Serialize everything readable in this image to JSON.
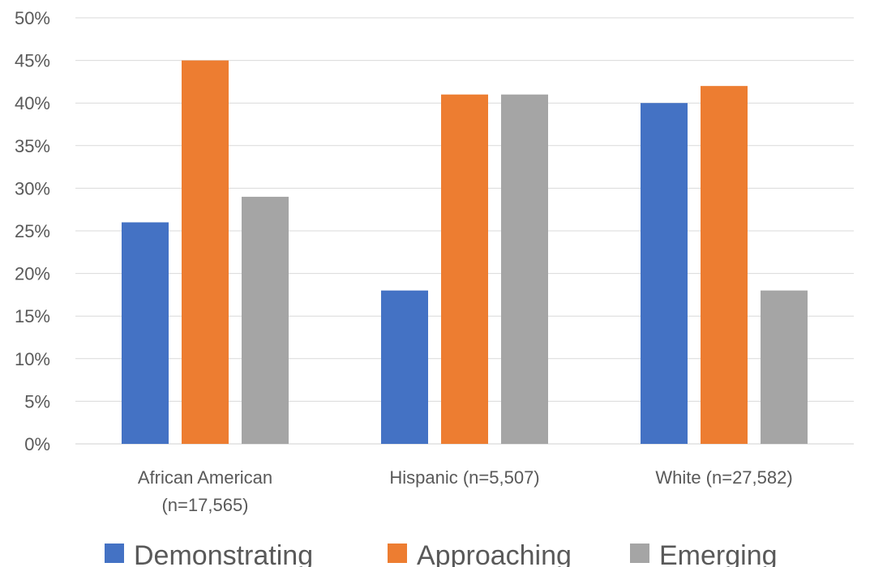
{
  "chart_data": {
    "type": "bar",
    "categories": [
      [
        "African American",
        "(n=17,565)"
      ],
      [
        "Hispanic (n=5,507)"
      ],
      [
        "White (n=27,582)"
      ]
    ],
    "series": [
      {
        "name": "Demonstrating",
        "values": [
          26,
          18,
          40
        ],
        "color": "#4472C4"
      },
      {
        "name": "Approaching",
        "values": [
          45,
          41,
          42
        ],
        "color": "#ED7D31"
      },
      {
        "name": "Emerging",
        "values": [
          29,
          41,
          18
        ],
        "color": "#A5A5A5"
      }
    ],
    "y_ticks": [
      "0%",
      "5%",
      "10%",
      "15%",
      "20%",
      "25%",
      "30%",
      "35%",
      "40%",
      "45%",
      "50%"
    ],
    "ylim": [
      0,
      50
    ],
    "y_unit": "%",
    "grid": true,
    "legend_position": "bottom"
  }
}
